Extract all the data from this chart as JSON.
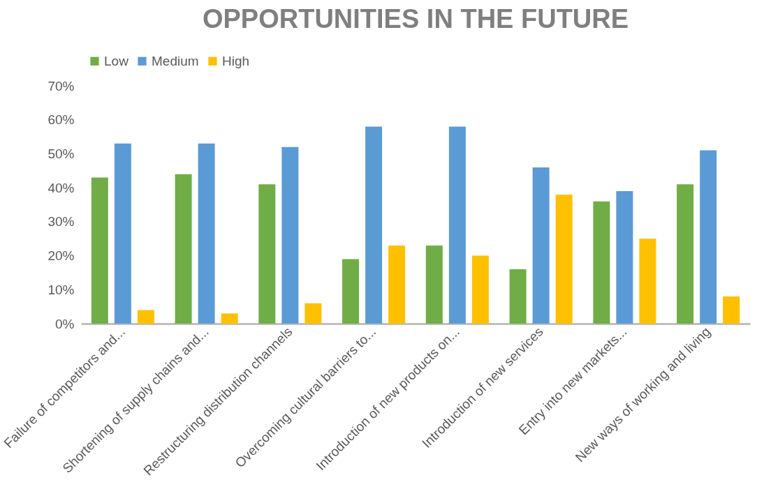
{
  "chart_data": {
    "type": "bar",
    "title": "OPPORTUNITIES IN THE FUTURE",
    "categories": [
      "Failure of competitors and...",
      "Shortening of supply chains and...",
      "Restructuring distribution channels",
      "Overcoming cultural barriers to...",
      "Introduction of new products on...",
      "Introduction of new services",
      "Entry into new markets...",
      "New ways of working and living"
    ],
    "series": [
      {
        "name": "Low",
        "color": "#70ad47",
        "values": [
          43,
          44,
          41,
          19,
          23,
          16,
          36,
          41
        ]
      },
      {
        "name": "Medium",
        "color": "#5b9bd5",
        "values": [
          53,
          53,
          52,
          58,
          58,
          46,
          39,
          51
        ]
      },
      {
        "name": "High",
        "color": "#ffc000",
        "values": [
          4,
          3,
          6,
          23,
          20,
          38,
          25,
          8
        ]
      }
    ],
    "ylim": [
      0,
      70
    ],
    "yticks": [
      {
        "value": 0,
        "label": "0%"
      },
      {
        "value": 10,
        "label": "10%"
      },
      {
        "value": 20,
        "label": "20%"
      },
      {
        "value": 30,
        "label": "30%"
      },
      {
        "value": 40,
        "label": "40%"
      },
      {
        "value": 50,
        "label": "50%"
      },
      {
        "value": 60,
        "label": "60%"
      },
      {
        "value": 70,
        "label": "70%"
      }
    ],
    "grid": false,
    "legend": "top"
  }
}
